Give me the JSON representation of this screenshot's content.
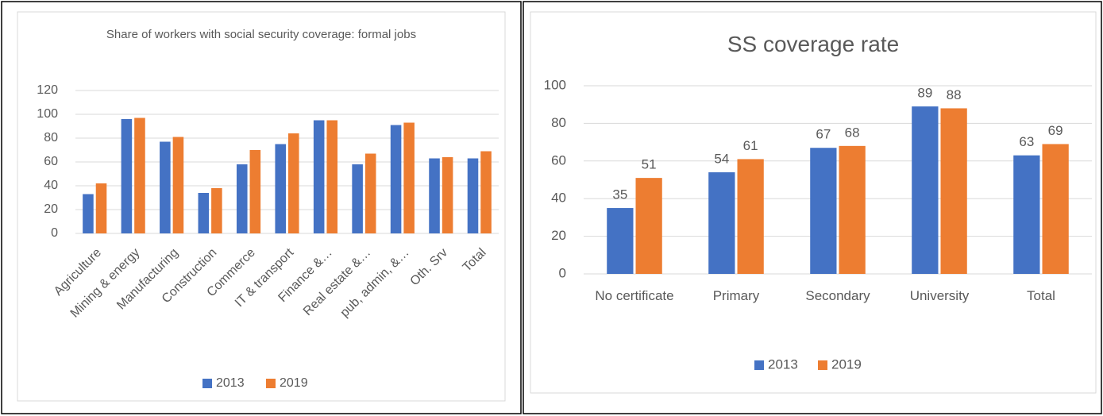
{
  "chart_data": [
    {
      "type": "bar",
      "title": "Share of workers with social security coverage: formal jobs",
      "categories": [
        "Agriculture",
        "Mining & energy",
        "Manufacturing",
        "Construction",
        "Commerce",
        "IT & transport",
        "Finance &…",
        "Real estate &…",
        "pub, admin, &…",
        "Oth. Srv",
        "Total"
      ],
      "series": [
        {
          "name": "2013",
          "color": "#4472c4",
          "values": [
            33,
            96,
            77,
            34,
            58,
            75,
            95,
            58,
            91,
            63,
            63
          ]
        },
        {
          "name": "2019",
          "color": "#ed7d31",
          "values": [
            42,
            97,
            81,
            38,
            70,
            84,
            95,
            67,
            93,
            64,
            69
          ]
        }
      ],
      "ylim": [
        0,
        120
      ],
      "yticks": [
        0,
        20,
        40,
        60,
        80,
        100,
        120
      ],
      "grid": true,
      "legend": "bottom",
      "data_labels": false
    },
    {
      "type": "bar",
      "title": "SS coverage rate",
      "categories": [
        "No certificate",
        "Primary",
        "Secondary",
        "University",
        "Total"
      ],
      "series": [
        {
          "name": "2013",
          "color": "#4472c4",
          "values": [
            35,
            54,
            67,
            89,
            63
          ]
        },
        {
          "name": "2019",
          "color": "#ed7d31",
          "values": [
            51,
            61,
            68,
            88,
            69
          ]
        }
      ],
      "ylim": [
        0,
        100
      ],
      "yticks": [
        0,
        20,
        40,
        60,
        80,
        100
      ],
      "grid": true,
      "legend": "bottom",
      "data_labels": true
    }
  ]
}
